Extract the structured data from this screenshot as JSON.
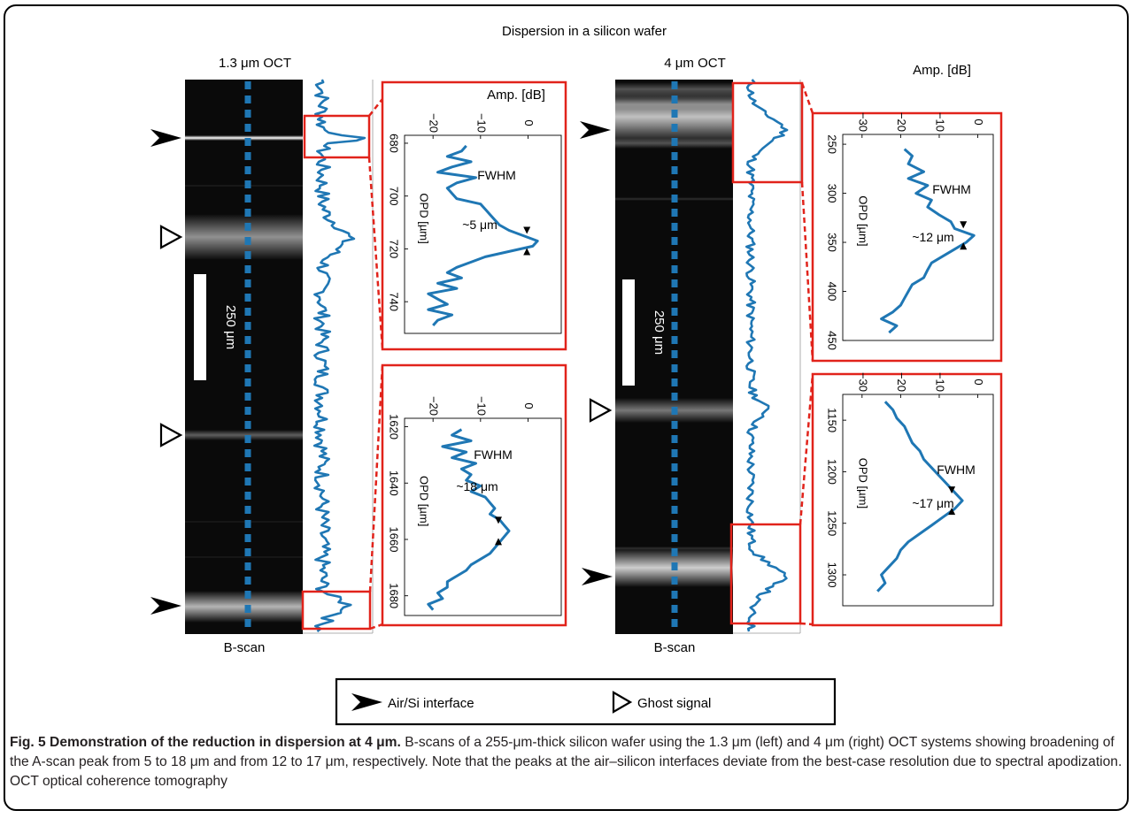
{
  "figure": {
    "title": "Dispersion in a silicon wafer",
    "left_label": "1.3 μm OCT",
    "right_label": "4 μm OCT",
    "bscan_label": "B-scan",
    "scalebar_label": "250 μm",
    "legend": {
      "interface": "Air/Si interface",
      "ghost": "Ghost signal"
    },
    "icons": {
      "interface": "filled-arrowhead-icon",
      "ghost": "hollow-arrowhead-icon"
    },
    "colors": {
      "trace": "#1f77b4",
      "inset_border": "#e1231b",
      "bscan_background": "#0a0a0a"
    }
  },
  "caption": {
    "heading": "Fig. 5 Demonstration of the reduction in dispersion at 4 μm.",
    "text": "B-scans of a 255-μm-thick silicon wafer using the 1.3 μm (left) and 4 μm (right) OCT systems showing broadening of the A-scan peak from 5 to 18 μm and from 12 to 17 μm, respectively. Note that the peaks at the air–silicon interfaces deviate from the best-case resolution due to spectral apodization. OCT optical coherence tomography"
  },
  "chart_data": [
    {
      "type": "line",
      "panel": "1.3 μm OCT – first interface",
      "xlabel": "OPD [µm]",
      "ylabel": "Amp. [dB]",
      "x_ticks": [
        680,
        700,
        720,
        740
      ],
      "y_ticks": [
        -20,
        -10,
        0
      ],
      "xlim": [
        677,
        752
      ],
      "ylim": [
        -26,
        7
      ],
      "annotation": "FWHM",
      "width_label": "~5 μm",
      "x": [
        681,
        683,
        685,
        687,
        689,
        691,
        693,
        695,
        697,
        699,
        701,
        703,
        705,
        707,
        709,
        711,
        713,
        715,
        717,
        719,
        721,
        723,
        725,
        727,
        729,
        731,
        733,
        735,
        737,
        739,
        741,
        743,
        745,
        747,
        749
      ],
      "y": [
        -13,
        -14,
        -17,
        -12,
        -16,
        -19,
        -11,
        -15,
        -17,
        -16,
        -15,
        -10,
        -9,
        -8,
        -7,
        -6,
        -4,
        -1,
        2,
        1,
        -4,
        -9,
        -12,
        -15,
        -17,
        -14,
        -19,
        -15,
        -21,
        -19,
        -17,
        -21,
        -16,
        -19,
        -20
      ]
    },
    {
      "type": "line",
      "panel": "1.3 μm OCT – second interface",
      "xlabel": "OPD [µm]",
      "ylabel": "Amp. [dB]",
      "x_ticks": [
        1620,
        1640,
        1660,
        1680
      ],
      "y_ticks": [
        -20,
        -10,
        0
      ],
      "xlim": [
        1617,
        1687
      ],
      "ylim": [
        -26,
        7
      ],
      "annotation": "FWHM",
      "width_label": "~18 μm",
      "x": [
        1621,
        1623,
        1625,
        1627,
        1629,
        1631,
        1633,
        1635,
        1637,
        1639,
        1641,
        1643,
        1645,
        1647,
        1649,
        1651,
        1653,
        1655,
        1657,
        1659,
        1661,
        1663,
        1665,
        1667,
        1669,
        1671,
        1673,
        1675,
        1677,
        1679,
        1681,
        1683,
        1685
      ],
      "y": [
        -14,
        -16,
        -12,
        -18,
        -13,
        -16,
        -11,
        -14,
        -12,
        -13,
        -10,
        -12,
        -9,
        -8,
        -7,
        -8,
        -6,
        -5,
        -4,
        -5,
        -6,
        -7,
        -8,
        -10,
        -12,
        -13,
        -15,
        -17,
        -17,
        -19,
        -18,
        -21,
        -20
      ]
    },
    {
      "type": "line",
      "panel": "4 μm OCT – first interface",
      "xlabel": "OPD [µm]",
      "ylabel": "Amp. [dB]",
      "x_ticks": [
        250,
        300,
        350,
        400,
        450
      ],
      "y_ticks": [
        -30,
        -20,
        -10,
        0
      ],
      "xlim": [
        240,
        450
      ],
      "ylim": [
        -35,
        4
      ],
      "annotation": "FWHM",
      "width_label": "~12 μm",
      "x": [
        255,
        262,
        270,
        278,
        285,
        292,
        300,
        307,
        314,
        322,
        329,
        336,
        343,
        350,
        357,
        364,
        371,
        378,
        386,
        393,
        400,
        407,
        414,
        421,
        428,
        435,
        442
      ],
      "y": [
        -19,
        -17,
        -18,
        -14,
        -18,
        -13,
        -16,
        -12,
        -13,
        -10,
        -7,
        -6,
        -1,
        -3,
        -6,
        -9,
        -12,
        -13,
        -14,
        -17,
        -18,
        -19,
        -20,
        -22,
        -25,
        -21,
        -23
      ]
    },
    {
      "type": "line",
      "panel": "4 μm OCT – second interface",
      "xlabel": "OPD [µm]",
      "ylabel": "Amp. [dB]",
      "x_ticks": [
        1150,
        1200,
        1250,
        1300
      ],
      "y_ticks": [
        -30,
        -20,
        -10,
        0
      ],
      "xlim": [
        1125,
        1330
      ],
      "ylim": [
        -35,
        4
      ],
      "annotation": "FWHM",
      "width_label": "~17 μm",
      "x": [
        1132,
        1140,
        1148,
        1156,
        1164,
        1172,
        1180,
        1188,
        1196,
        1204,
        1212,
        1220,
        1228,
        1236,
        1244,
        1252,
        1260,
        1268,
        1276,
        1284,
        1292,
        1300,
        1308,
        1316
      ],
      "y": [
        -24,
        -22,
        -21,
        -19,
        -18,
        -17,
        -15,
        -14,
        -12,
        -10,
        -8,
        -6,
        -4,
        -6,
        -9,
        -12,
        -15,
        -18,
        -20,
        -21,
        -23,
        -25,
        -24,
        -26
      ]
    }
  ]
}
